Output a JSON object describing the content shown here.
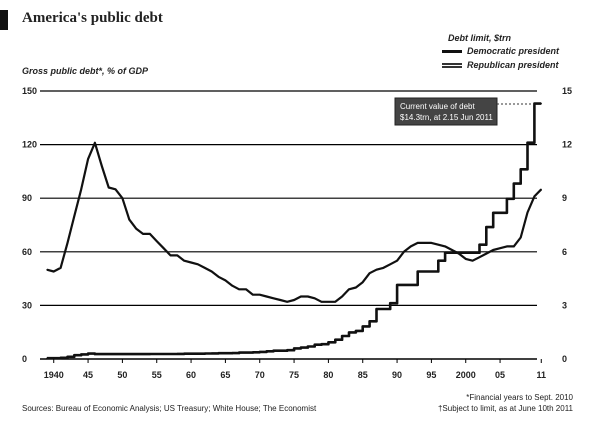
{
  "header": {
    "title": "America's public debt"
  },
  "chart_data": {
    "type": "line",
    "left_axis": {
      "label": "Gross public debt*, % of GDP",
      "ylim": [
        0,
        150
      ],
      "ticks": [
        0,
        30,
        60,
        90,
        120,
        150
      ]
    },
    "right_axis": {
      "label": "Debt limit, $trn",
      "ylim": [
        0,
        15
      ],
      "ticks": [
        0,
        3,
        6,
        9,
        12,
        15
      ]
    },
    "x_ticks": [
      {
        "value": 1940,
        "label": "1940"
      },
      {
        "value": 1945,
        "label": "45"
      },
      {
        "value": 1950,
        "label": "50"
      },
      {
        "value": 1955,
        "label": "55"
      },
      {
        "value": 1960,
        "label": "60"
      },
      {
        "value": 1965,
        "label": "65"
      },
      {
        "value": 1970,
        "label": "70"
      },
      {
        "value": 1975,
        "label": "75"
      },
      {
        "value": 1980,
        "label": "80"
      },
      {
        "value": 1985,
        "label": "85"
      },
      {
        "value": 1990,
        "label": "90"
      },
      {
        "value": 1995,
        "label": "95"
      },
      {
        "value": 2000,
        "label": "2000"
      },
      {
        "value": 2005,
        "label": "05"
      },
      {
        "value": 2011,
        "label": "11"
      }
    ],
    "xlim": [
      1938,
      2013
    ],
    "grid": true,
    "legend": {
      "position": "top-right",
      "entries": [
        "Democratic president",
        "Republican president"
      ]
    },
    "series": [
      {
        "axis": "left",
        "points": [
          [
            1939,
            50
          ],
          [
            1940,
            49
          ],
          [
            1941,
            51
          ],
          [
            1942,
            65
          ],
          [
            1943,
            80
          ],
          [
            1944,
            95
          ],
          [
            1945,
            112
          ],
          [
            1946,
            121
          ],
          [
            1947,
            108
          ],
          [
            1948,
            96
          ],
          [
            1949,
            95
          ],
          [
            1950,
            90
          ],
          [
            1951,
            78
          ],
          [
            1952,
            73
          ],
          [
            1953,
            70
          ],
          [
            1954,
            70
          ],
          [
            1955,
            66
          ],
          [
            1956,
            62
          ],
          [
            1957,
            58
          ],
          [
            1958,
            58
          ],
          [
            1959,
            55
          ],
          [
            1960,
            54
          ],
          [
            1961,
            53
          ],
          [
            1962,
            51
          ],
          [
            1963,
            49
          ],
          [
            1964,
            46
          ],
          [
            1965,
            44
          ],
          [
            1966,
            41
          ],
          [
            1967,
            39
          ],
          [
            1968,
            39
          ],
          [
            1969,
            36
          ],
          [
            1970,
            36
          ],
          [
            1971,
            35
          ],
          [
            1972,
            34
          ],
          [
            1973,
            33
          ],
          [
            1974,
            32
          ],
          [
            1975,
            33
          ],
          [
            1976,
            35
          ],
          [
            1977,
            35
          ],
          [
            1978,
            34
          ],
          [
            1979,
            32
          ],
          [
            1980,
            32
          ],
          [
            1981,
            32
          ],
          [
            1982,
            35
          ],
          [
            1983,
            39
          ],
          [
            1984,
            40
          ],
          [
            1985,
            43
          ],
          [
            1986,
            48
          ],
          [
            1987,
            50
          ],
          [
            1988,
            51
          ],
          [
            1989,
            53
          ],
          [
            1990,
            55
          ],
          [
            1991,
            60
          ],
          [
            1992,
            63
          ],
          [
            1993,
            65
          ],
          [
            1994,
            65
          ],
          [
            1995,
            65
          ],
          [
            1996,
            64
          ],
          [
            1997,
            63
          ],
          [
            1998,
            61
          ],
          [
            1999,
            59
          ],
          [
            2000,
            56
          ],
          [
            2001,
            55
          ],
          [
            2002,
            57
          ],
          [
            2003,
            59
          ],
          [
            2004,
            61
          ],
          [
            2005,
            62
          ],
          [
            2006,
            63
          ],
          [
            2007,
            63
          ],
          [
            2008,
            68
          ],
          [
            2009,
            82
          ],
          [
            2010,
            91
          ],
          [
            2011,
            95
          ]
        ]
      },
      {
        "axis": "right",
        "step": true,
        "points": [
          [
            1939,
            0.045
          ],
          [
            1941,
            0.065
          ],
          [
            1942,
            0.125
          ],
          [
            1943,
            0.21
          ],
          [
            1944,
            0.26
          ],
          [
            1945,
            0.3
          ],
          [
            1946,
            0.275
          ],
          [
            1954,
            0.281
          ],
          [
            1956,
            0.278
          ],
          [
            1958,
            0.283
          ],
          [
            1959,
            0.295
          ],
          [
            1961,
            0.298
          ],
          [
            1962,
            0.308
          ],
          [
            1963,
            0.315
          ],
          [
            1964,
            0.324
          ],
          [
            1966,
            0.33
          ],
          [
            1967,
            0.358
          ],
          [
            1969,
            0.377
          ],
          [
            1970,
            0.395
          ],
          [
            1971,
            0.43
          ],
          [
            1972,
            0.465
          ],
          [
            1974,
            0.495
          ],
          [
            1975,
            0.595
          ],
          [
            1976,
            0.636
          ],
          [
            1977,
            0.7
          ],
          [
            1978,
            0.798
          ],
          [
            1979,
            0.83
          ],
          [
            1980,
            0.935
          ],
          [
            1981,
            1.079
          ],
          [
            1982,
            1.29
          ],
          [
            1983,
            1.49
          ],
          [
            1984,
            1.573
          ],
          [
            1985,
            1.824
          ],
          [
            1986,
            2.111
          ],
          [
            1987,
            2.8
          ],
          [
            1989,
            3.123
          ],
          [
            1990,
            4.145
          ],
          [
            1993,
            4.9
          ],
          [
            1996,
            5.5
          ],
          [
            1997,
            5.95
          ],
          [
            2002,
            6.4
          ],
          [
            2003,
            7.384
          ],
          [
            2004,
            8.184
          ],
          [
            2006,
            8.965
          ],
          [
            2007,
            9.815
          ],
          [
            2008,
            10.615
          ],
          [
            2009,
            12.104
          ],
          [
            2010,
            14.294
          ],
          [
            2011,
            14.294
          ]
        ]
      }
    ],
    "annotation": {
      "line1": "Current value of debt",
      "line2": "$14.3trn, at 2.15 Jun 2011"
    }
  },
  "footer": {
    "left": "Sources: Bureau of Economic Analysis; US Treasury; White House; The Economist",
    "right_line1": "*Financial years to Sept. 2010",
    "right_line2": "†Subject to limit, as at June 10th 2011"
  }
}
